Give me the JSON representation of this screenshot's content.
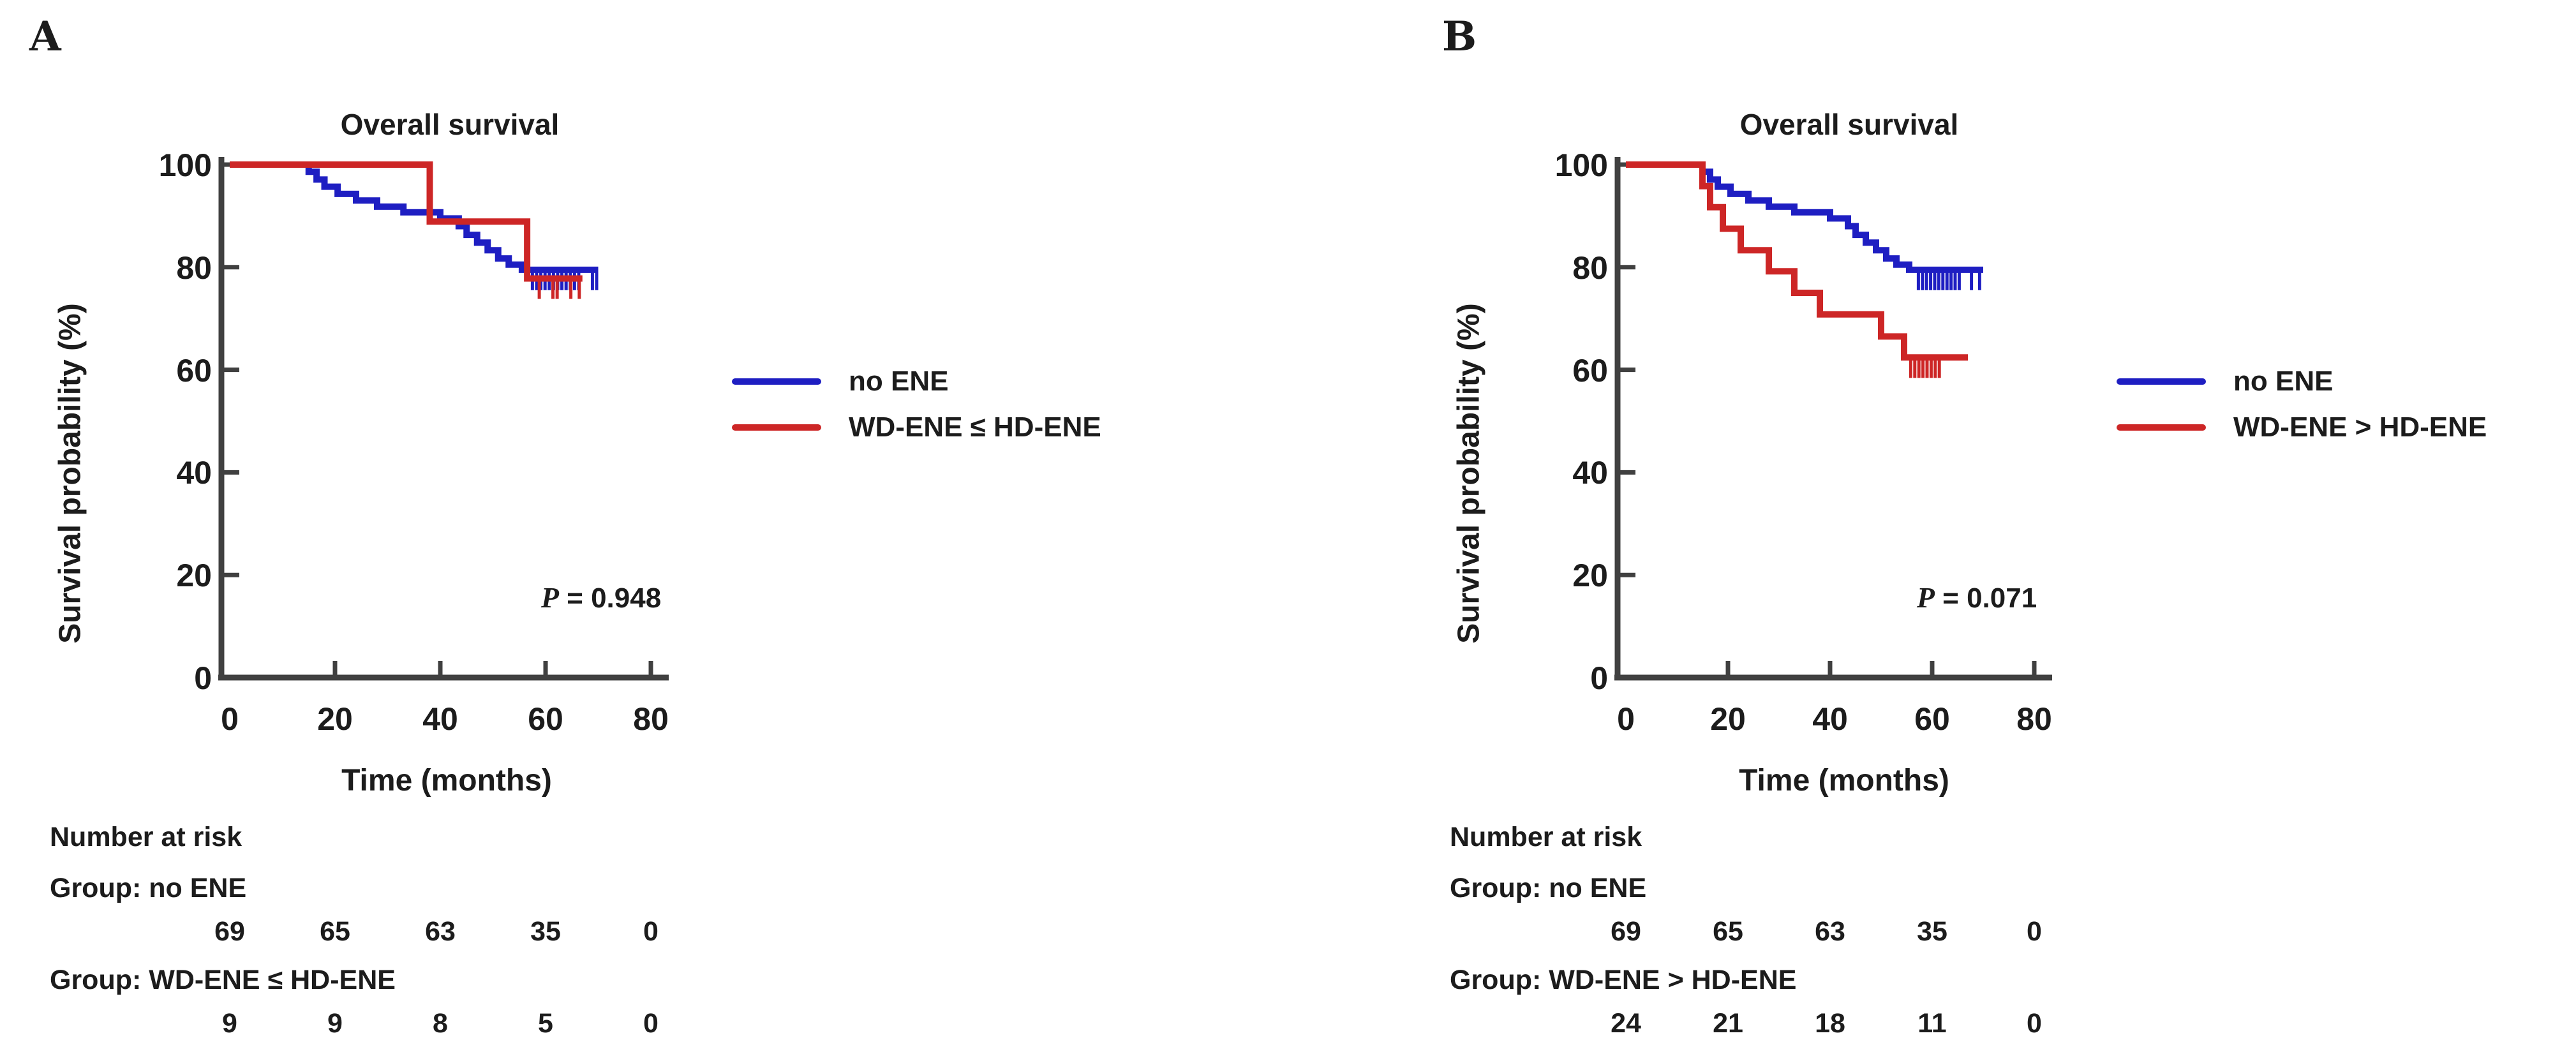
{
  "figure": {
    "panels": [
      {
        "label": "A",
        "title": "Overall survival",
        "y_axis_label": "Survival probability (%)",
        "x_axis_label": "Time (months)",
        "p_label": "P",
        "p_rest": " = 0.948",
        "legend": [
          {
            "name": "no ENE",
            "color": "#1e1ec2"
          },
          {
            "name": "WD-ENE ≤ HD-ENE",
            "color": "#cd2626"
          }
        ],
        "number_at_risk": {
          "heading": "Number at risk",
          "groups": [
            {
              "label": "Group: no ENE",
              "counts": [
                "69",
                "65",
                "63",
                "35",
                "0"
              ]
            },
            {
              "label": "Group: WD-ENE ≤ HD-ENE",
              "counts": [
                "9",
                "9",
                "8",
                "5",
                "0"
              ]
            }
          ]
        },
        "chart_data": {
          "type": "line",
          "subtype": "kaplan-meier",
          "title": "Overall survival",
          "xlabel": "Time (months)",
          "ylabel": "Survival probability (%)",
          "xlim": [
            0,
            80
          ],
          "ylim": [
            0,
            100
          ],
          "xticks": [
            0,
            20,
            40,
            60,
            80
          ],
          "yticks": [
            0,
            20,
            40,
            60,
            80,
            100
          ],
          "grid": false,
          "legend_position": "right",
          "p_value": "P = 0.948",
          "series": [
            {
              "name": "no ENE",
              "color": "#1e1ec2",
              "steps": [
                [
                  0,
                  100
                ],
                [
                  15,
                  98.6
                ],
                [
                  16.5,
                  97.1
                ],
                [
                  18,
                  95.7
                ],
                [
                  20.5,
                  94.3
                ],
                [
                  24,
                  93
                ],
                [
                  28,
                  91.8
                ],
                [
                  33,
                  90.7
                ],
                [
                  40,
                  89.5
                ],
                [
                  43.5,
                  88
                ],
                [
                  45,
                  86.3
                ],
                [
                  47,
                  84.8
                ],
                [
                  49,
                  83.3
                ],
                [
                  51,
                  81.7
                ],
                [
                  53,
                  80.5
                ],
                [
                  55.5,
                  79.5
                ]
              ],
              "end_t": 70,
              "censor_t": [
                57.5,
                58.3,
                59.1,
                59.9,
                60.7,
                61.5,
                62.3,
                63.1,
                63.9,
                64.7,
                65.5,
                66.3,
                68.9,
                69.7
              ]
            },
            {
              "name": "WD-ENE ≤ HD-ENE",
              "color": "#cd2626",
              "steps": [
                [
                  0,
                  100
                ],
                [
                  38,
                  88.9
                ],
                [
                  56.5,
                  77.8
                ]
              ],
              "end_t": 67,
              "censor_t": [
                58.8,
                61.4,
                62.2,
                64.8,
                66.4
              ]
            }
          ]
        }
      },
      {
        "label": "B",
        "title": "Overall survival",
        "y_axis_label": "Survival probability (%)",
        "x_axis_label": "Time (months)",
        "p_label": "P",
        "p_rest": " = 0.071",
        "legend": [
          {
            "name": "no ENE",
            "color": "#1e1ec2"
          },
          {
            "name": "WD-ENE > HD-ENE",
            "color": "#cd2626"
          }
        ],
        "number_at_risk": {
          "heading": "Number at risk",
          "groups": [
            {
              "label": "Group: no ENE",
              "counts": [
                "69",
                "65",
                "63",
                "35",
                "0"
              ]
            },
            {
              "label": "Group: WD-ENE > HD-ENE",
              "counts": [
                "24",
                "21",
                "18",
                "11",
                "0"
              ]
            }
          ]
        },
        "chart_data": {
          "type": "line",
          "subtype": "kaplan-meier",
          "title": "Overall survival",
          "xlabel": "Time (months)",
          "ylabel": "Survival probability (%)",
          "xlim": [
            0,
            80
          ],
          "ylim": [
            0,
            100
          ],
          "xticks": [
            0,
            20,
            40,
            60,
            80
          ],
          "yticks": [
            0,
            20,
            40,
            60,
            80,
            100
          ],
          "grid": false,
          "legend_position": "right",
          "p_value": "P = 0.071",
          "series": [
            {
              "name": "no ENE",
              "color": "#1e1ec2",
              "steps": [
                [
                  0,
                  100
                ],
                [
                  15,
                  98.6
                ],
                [
                  16.5,
                  97.1
                ],
                [
                  18,
                  95.7
                ],
                [
                  20.5,
                  94.3
                ],
                [
                  24,
                  93
                ],
                [
                  28,
                  91.8
                ],
                [
                  33,
                  90.7
                ],
                [
                  40,
                  89.5
                ],
                [
                  43.5,
                  88
                ],
                [
                  45,
                  86.3
                ],
                [
                  47,
                  84.8
                ],
                [
                  49,
                  83.3
                ],
                [
                  51,
                  81.7
                ],
                [
                  53,
                  80.5
                ],
                [
                  55.5,
                  79.5
                ]
              ],
              "end_t": 70,
              "censor_t": [
                57.3,
                58.1,
                58.9,
                59.7,
                60.5,
                61.3,
                62.1,
                62.9,
                63.7,
                64.5,
                65.3,
                67.7,
                69.3
              ]
            },
            {
              "name": "WD-ENE > HD-ENE",
              "color": "#cd2626",
              "steps": [
                [
                  0,
                  100
                ],
                [
                  15,
                  95.8
                ],
                [
                  16.5,
                  91.7
                ],
                [
                  19,
                  87.5
                ],
                [
                  22.5,
                  83.3
                ],
                [
                  28,
                  79.2
                ],
                [
                  33,
                  75
                ],
                [
                  38,
                  70.8
                ],
                [
                  50,
                  66.5
                ],
                [
                  54.5,
                  62.4
                ]
              ],
              "end_t": 67,
              "censor_t": [
                55.8,
                56.6,
                57.4,
                58.2,
                59,
                59.8,
                60.6,
                61.4
              ]
            }
          ]
        }
      }
    ]
  }
}
